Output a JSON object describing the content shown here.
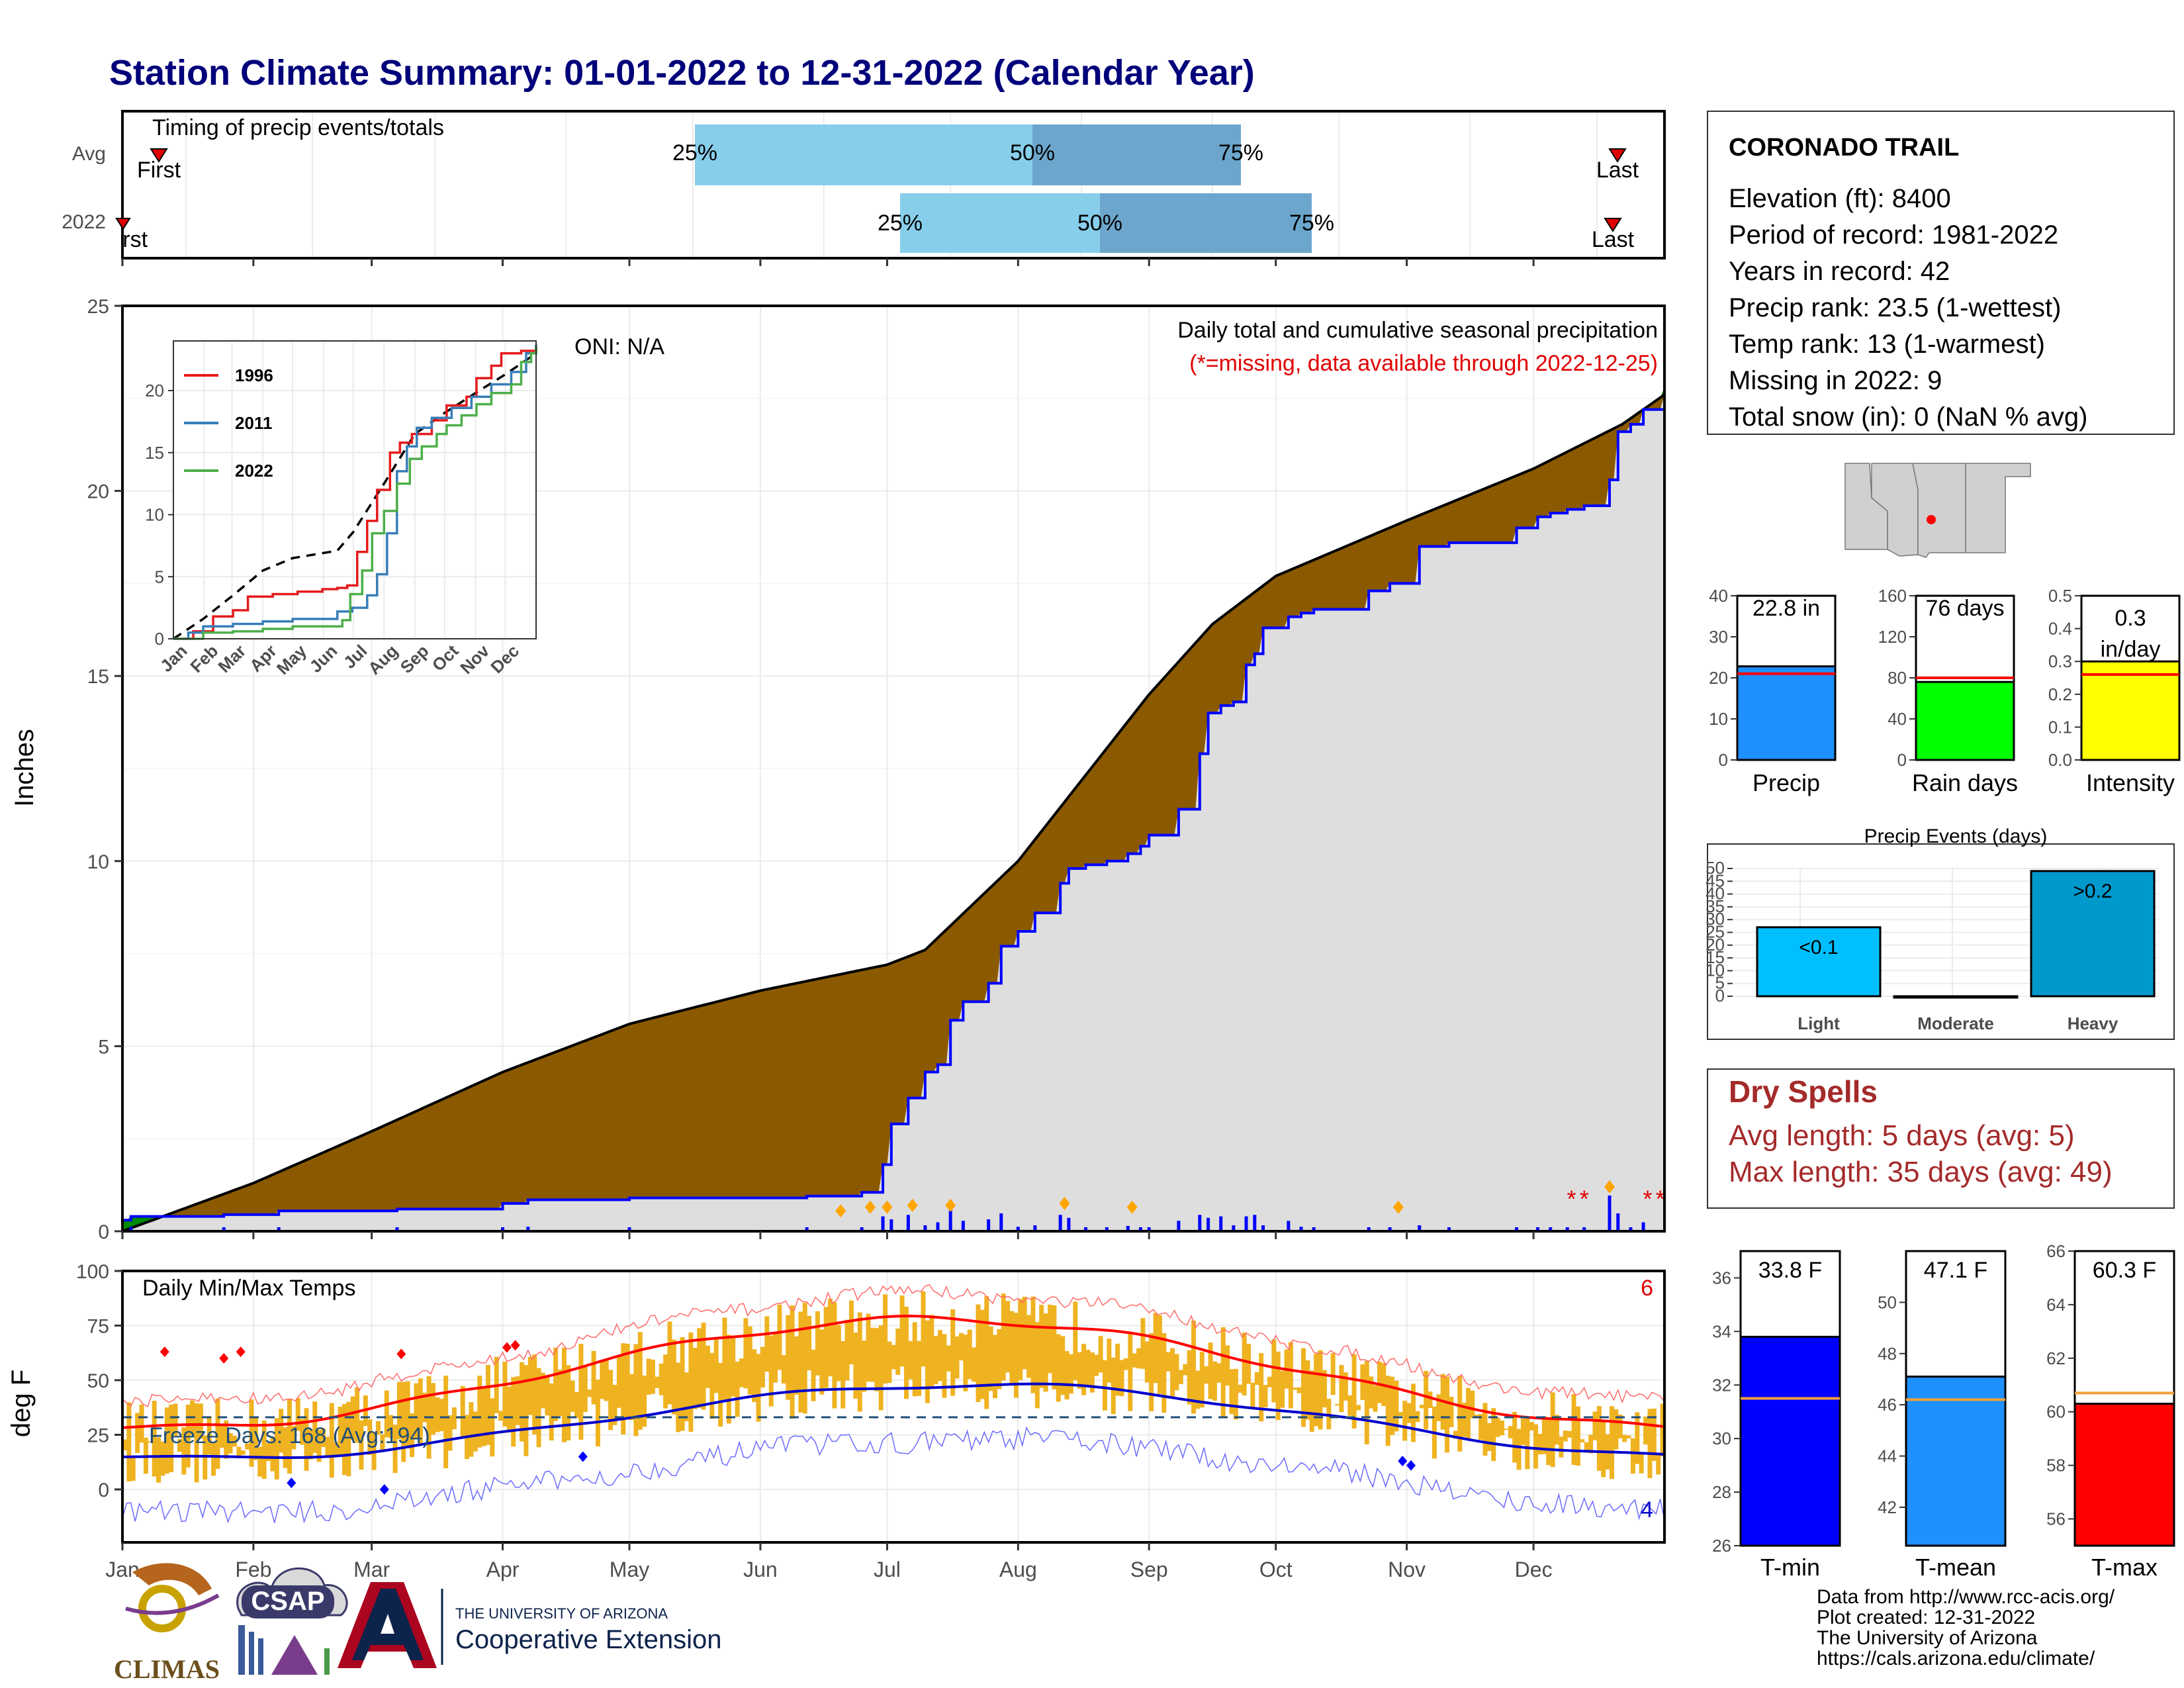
{
  "title": "Station Climate Summary: 01-01-2022 to 12-31-2022 (Calendar Year)",
  "timing": {
    "label": "Timing of precip events/totals",
    "rows": [
      "Avg",
      "2022"
    ],
    "avg": {
      "first_label": "First",
      "last_label": "Last",
      "p25": "25%",
      "p50": "50%",
      "p75": "75%"
    },
    "y2022": {
      "first_label": "First",
      "last_label": "Last",
      "p25": "25%",
      "p50": "50%",
      "p75": "75%"
    },
    "colors": {
      "light": "#87ceeb",
      "dark": "#6ca6cd",
      "marker": "#e00000"
    }
  },
  "main_chart": {
    "ylabel": "Inches",
    "oni": "ONI: N/A",
    "legend_title": "Daily total and cumulative seasonal precipitation",
    "legend_missing": "(*=missing, data available through 2022-12-25)",
    "y_ticks": [
      "0",
      "5",
      "10",
      "15",
      "20",
      "25"
    ],
    "colors": {
      "below": "#8b5a00",
      "above": "#008b00",
      "fill": "#dedede",
      "line2022": "#0000ff",
      "bars": "#0000ff"
    }
  },
  "inset": {
    "legend": [
      "1996",
      "2011",
      "2022"
    ],
    "colors": {
      "1996": "#e41a1c",
      "2011": "#377eb8",
      "2022": "#4daf4a",
      "avg": "#000000"
    },
    "y_ticks": [
      "0",
      "5",
      "10",
      "15",
      "20"
    ],
    "x_ticks": [
      "Jan",
      "Feb",
      "Mar",
      "Apr",
      "May",
      "Jun",
      "Jul",
      "Aug",
      "Sep",
      "Oct",
      "Nov",
      "Dec"
    ]
  },
  "temp_chart": {
    "ylabel": "deg F",
    "title": "Daily Min/Max Temps",
    "freeze": "Freeze Days: 168 (Avg:194)",
    "count_top": "6",
    "count_bottom": "4",
    "y_ticks": [
      "0",
      "25",
      "50",
      "75",
      "100"
    ],
    "colors": {
      "bars": "#efb321",
      "max": "#ff0000",
      "min": "#0000cc",
      "freeze": "#1f4e79"
    }
  },
  "months": [
    "Jan",
    "Feb",
    "Mar",
    "Apr",
    "May",
    "Jun",
    "Jul",
    "Aug",
    "Sep",
    "Oct",
    "Nov",
    "Dec"
  ],
  "info": {
    "station": "CORONADO TRAIL",
    "lines": [
      "Elevation (ft): 8400",
      "Period of record: 1981-2022",
      "Years in record: 42",
      "Precip rank: 23.5 (1-wettest)",
      "Temp rank: 13 (1-warmest)",
      "Missing in 2022: 9",
      "Total snow (in): 0 (NaN % avg)"
    ]
  },
  "mini_bars": [
    {
      "name": "Precip",
      "label": "22.8 in",
      "value": 22.8,
      "avg": 21.0,
      "max": 40,
      "ticks": [
        "0",
        "10",
        "20",
        "30",
        "40"
      ],
      "color": "#1e90ff"
    },
    {
      "name": "Rain days",
      "label": "76 days",
      "value": 76,
      "avg": 80,
      "max": 160,
      "ticks": [
        "0",
        "40",
        "80",
        "120",
        "160"
      ],
      "color": "#00ff00"
    },
    {
      "name": "Intensity",
      "label": "0.3 in/day",
      "value": 0.3,
      "avg": 0.26,
      "max": 0.5,
      "ticks": [
        "0.0",
        "0.1",
        "0.2",
        "0.3",
        "0.4",
        "0.5"
      ],
      "color": "#ffff00"
    }
  ],
  "events": {
    "title": "Precip Events (days)",
    "categories": [
      "Light",
      "Moderate",
      "Heavy"
    ],
    "values": [
      27,
      0,
      49
    ],
    "labels": [
      "<0.1",
      "",
      ">0.2"
    ],
    "ticks": [
      "0",
      "5",
      "10",
      "15",
      "20",
      "25",
      "30",
      "35",
      "40",
      "45",
      "50"
    ],
    "colors": [
      "#00bfff",
      "#0f8fc0",
      "#0099cc"
    ]
  },
  "dry_spells": {
    "title": "Dry Spells",
    "avg_length": "Avg length: 5 days (avg: 5)",
    "max_length": "Max length: 35 days (avg: 49)"
  },
  "temp_bars": [
    {
      "name": "T-min",
      "label": "33.8 F",
      "value": 33.8,
      "avg": 31.5,
      "min": 26,
      "max": 37,
      "ticks": [
        "26",
        "28",
        "30",
        "32",
        "34",
        "36"
      ],
      "color": "#0000ff"
    },
    {
      "name": "T-mean",
      "label": "47.1 F",
      "value": 47.1,
      "avg": 46.2,
      "min": 40.5,
      "max": 52,
      "ticks": [
        "42",
        "44",
        "46",
        "48",
        "50"
      ],
      "color": "#1e90ff"
    },
    {
      "name": "T-max",
      "label": "60.3 F",
      "value": 60.3,
      "avg": 60.7,
      "min": 55,
      "max": 66,
      "ticks": [
        "56",
        "58",
        "60",
        "62",
        "64",
        "66"
      ],
      "color": "#ff0000"
    }
  ],
  "logos": {
    "climas": "CLIMAS",
    "csap": "CSAP",
    "ua_top": "THE UNIVERSITY OF ARIZONA",
    "ua_bottom": "Cooperative Extension"
  },
  "footer": [
    "Data from http://www.rcc-acis.org/",
    "Plot created: 12-31-2022",
    "The University of Arizona",
    "https://cals.arizona.edu/climate/"
  ]
}
